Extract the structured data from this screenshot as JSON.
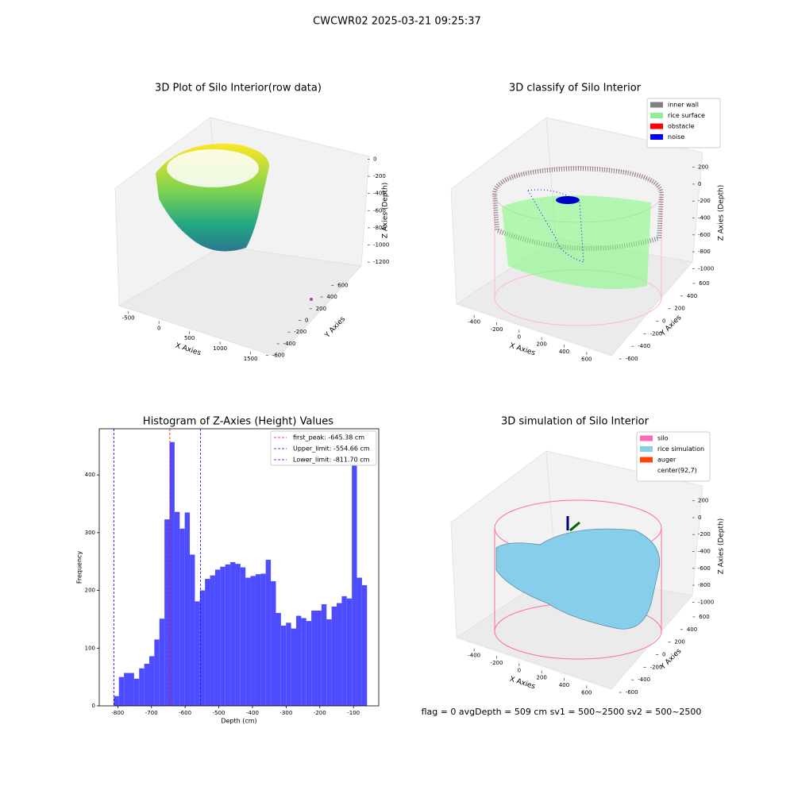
{
  "suptitle": "CWCWR02 2025-03-21 09:25:37",
  "footer": "flag = 0     avgDepth = 509 cm  sv1 = 500~2500  sv2 = 500~2500",
  "chart_data": [
    {
      "type": "scatter3d",
      "title": "3D Plot of Silo Interior(row data)",
      "xlabel": "X Axies",
      "ylabel": "Y Axies",
      "zlabel": "Z Axies (Depth)",
      "xlim": [
        -600,
        1700
      ],
      "ylim": [
        -700,
        700
      ],
      "zlim": [
        -1300,
        50
      ],
      "xticks": [
        -500,
        0,
        500,
        1000,
        1500
      ],
      "yticks": [
        -600,
        -400,
        -200,
        0,
        200,
        400,
        600
      ],
      "zticks": [
        0,
        -200,
        -400,
        -600,
        -800,
        -1000,
        -1200
      ]
    },
    {
      "type": "scatter3d",
      "title": "3D classify of Silo Interior",
      "xlabel": "X Axies",
      "ylabel": "Y Axies",
      "zlabel": "Z Axies (Depth)",
      "xlim": [
        -500,
        700
      ],
      "ylim": [
        -700,
        700
      ],
      "zlim": [
        -1100,
        300
      ],
      "xticks": [
        -400,
        -200,
        0,
        200,
        400,
        600
      ],
      "yticks": [
        -600,
        -400,
        -200,
        0,
        200,
        400,
        600
      ],
      "zticks": [
        200,
        0,
        -200,
        -400,
        -600,
        -800,
        -1000
      ],
      "legend": [
        {
          "label": "inner wall",
          "color": "#808080"
        },
        {
          "label": "rice surface",
          "color": "#90ee90"
        },
        {
          "label": "obstacle",
          "color": "#ff0000"
        },
        {
          "label": "noise",
          "color": "#0000ff"
        }
      ]
    },
    {
      "type": "hist",
      "title": "Histogram of Z-Axies (Height) Values",
      "xlabel": "Depth (cm)",
      "ylabel": "Frequency",
      "color": "#4d4dff",
      "xlim": [
        -855,
        -25
      ],
      "ylim": [
        0,
        480
      ],
      "xticks": [
        -800,
        -700,
        -600,
        -500,
        -400,
        -300,
        -200,
        -100
      ],
      "yticks": [
        0,
        100,
        200,
        300,
        400
      ],
      "bins": [
        -811.7,
        -796.66,
        -781.62,
        -766.58,
        -751.54,
        -736.5,
        -721.46,
        -706.42,
        -691.38,
        -676.34,
        -661.3,
        -646.26,
        -631.22,
        -616.18,
        -601.14,
        -586.1,
        -571.06,
        -556.02,
        -540.98,
        -525.94,
        -510.9,
        -495.86,
        -480.82,
        -465.78,
        -450.74,
        -435.7,
        -420.66,
        -405.62,
        -390.58,
        -375.54,
        -360.5,
        -345.46,
        -330.42,
        -315.38,
        -300.34,
        -285.3,
        -270.26,
        -255.22,
        -240.18,
        -225.14,
        -210.1,
        -195.06,
        -180.02,
        -164.98,
        -149.94,
        -134.9,
        -119.86,
        -104.82,
        -89.78,
        -74.74,
        -59.7
      ],
      "counts": [
        17,
        50,
        57,
        57,
        47,
        65,
        73,
        86,
        115,
        151,
        323,
        457,
        336,
        307,
        335,
        262,
        181,
        200,
        220,
        226,
        236,
        241,
        245,
        249,
        246,
        240,
        222,
        225,
        228,
        229,
        253,
        216,
        161,
        139,
        144,
        134,
        156,
        152,
        147,
        165,
        165,
        176,
        150,
        172,
        178,
        190,
        186,
        419,
        222,
        209
      ],
      "lines": [
        {
          "label": "first_peak: -645.38 cm",
          "value": -645.38,
          "color": "#ff0000"
        },
        {
          "label": "Upper_limit: -554.66 cm",
          "value": -554.66,
          "color": "#0000ff"
        },
        {
          "label": "Lower_limit: -811.70 cm",
          "value": -811.7,
          "color": "#0000ff"
        }
      ]
    },
    {
      "type": "surface3d",
      "title": "3D simulation of Silo Interior",
      "xlabel": "X Axies",
      "ylabel": "Y Axies",
      "zlabel": "Z Axies (Depth)",
      "xlim": [
        -500,
        700
      ],
      "ylim": [
        -700,
        700
      ],
      "zlim": [
        -1100,
        300
      ],
      "xticks": [
        -400,
        -200,
        0,
        200,
        400,
        600
      ],
      "yticks": [
        -600,
        -400,
        -200,
        0,
        200,
        400,
        600
      ],
      "zticks": [
        200,
        0,
        -200,
        -400,
        -600,
        -800,
        -1000
      ],
      "legend": [
        {
          "label": "silo",
          "color": "#ff69b4"
        },
        {
          "label": "rice simulation",
          "color": "#87ceeb"
        },
        {
          "label": "auger",
          "color": "#ff4500"
        },
        {
          "label": "center(92,7)",
          "color": "#ffffff"
        }
      ]
    }
  ]
}
